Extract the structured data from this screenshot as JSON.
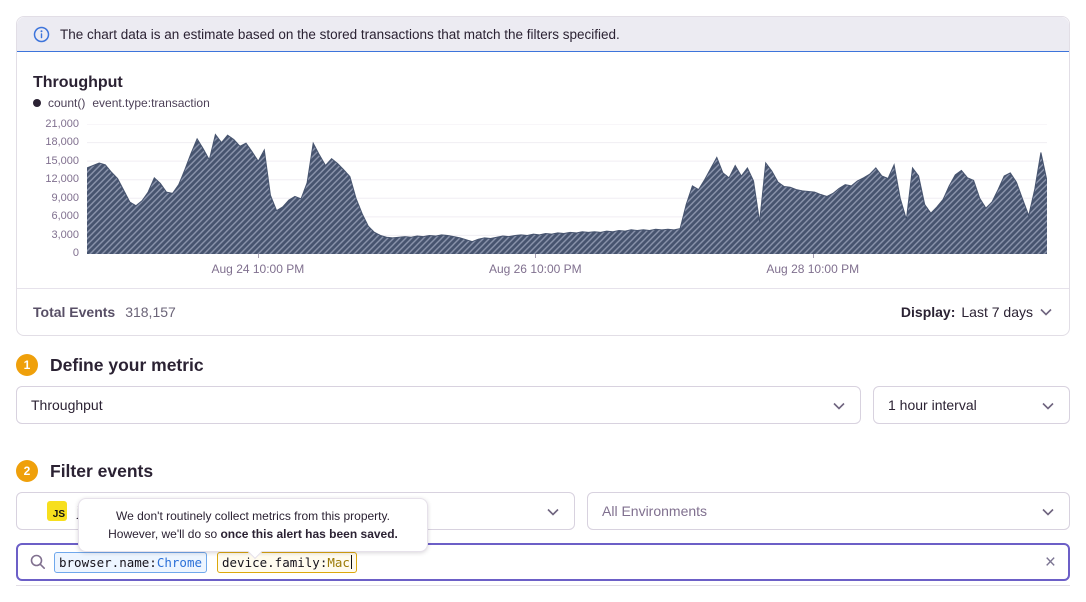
{
  "banner": {
    "text": "The chart data is an estimate based on the stored transactions that match the filters specified."
  },
  "chart_panel": {
    "title": "Throughput",
    "legend": {
      "aggregate": "count()",
      "query": "event.type:transaction"
    },
    "footer": {
      "total_label": "Total Events",
      "total_value": "318,157",
      "display_label": "Display:",
      "display_value": "Last 7 days"
    }
  },
  "chart_data": {
    "type": "area",
    "title": "Throughput",
    "xlabel": "",
    "ylabel": "",
    "ylim": [
      0,
      21000
    ],
    "grid": true,
    "legend_position": "top-left",
    "fill_color": "#47546F",
    "hatch_color": "#8A93AB",
    "grid_color": "#F0EEF3",
    "y_ticks": [
      {
        "value": 0,
        "label": "0"
      },
      {
        "value": 3000,
        "label": "3,000"
      },
      {
        "value": 6000,
        "label": "6,000"
      },
      {
        "value": 9000,
        "label": "9,000"
      },
      {
        "value": 12000,
        "label": "12,000"
      },
      {
        "value": 15000,
        "label": "15,000"
      },
      {
        "value": 18000,
        "label": "18,000"
      },
      {
        "value": 21000,
        "label": "21,000"
      }
    ],
    "x_ticks": [
      {
        "label": "Aug 24 10:00 PM",
        "pos": 0.178
      },
      {
        "label": "Aug 26 10:00 PM",
        "pos": 0.467
      },
      {
        "label": "Aug 28 10:00 PM",
        "pos": 0.756
      }
    ],
    "series": [
      {
        "name": "count() event.type:transaction",
        "values": [
          13900,
          14300,
          14700,
          14400,
          13200,
          12200,
          10300,
          8400,
          7800,
          8600,
          10000,
          12300,
          11400,
          10000,
          9800,
          11200,
          13600,
          16200,
          18600,
          17000,
          15200,
          19300,
          18000,
          19200,
          18500,
          17400,
          17900,
          16500,
          15000,
          16800,
          9500,
          7000,
          7600,
          8700,
          9300,
          8900,
          11500,
          17900,
          16000,
          14300,
          15400,
          14600,
          13600,
          12500,
          9000,
          6500,
          4500,
          3500,
          3000,
          2700,
          2600,
          2700,
          2800,
          2700,
          2900,
          2800,
          3000,
          2900,
          3100,
          3000,
          2800,
          2600,
          2300,
          2000,
          2400,
          2600,
          2500,
          2700,
          2900,
          2800,
          3000,
          3100,
          3000,
          3200,
          3100,
          3300,
          3200,
          3400,
          3300,
          3500,
          3400,
          3600,
          3500,
          3600,
          3500,
          3700,
          3600,
          3800,
          3700,
          3900,
          3800,
          3900,
          3800,
          4000,
          3900,
          4000,
          3900,
          4100,
          8000,
          11000,
          10400,
          12000,
          13800,
          15600,
          13100,
          12300,
          14300,
          12600,
          13900,
          11800,
          5200,
          14700,
          13400,
          11600,
          10900,
          10800,
          10400,
          10200,
          10100,
          10000,
          9600,
          9300,
          9800,
          10600,
          11200,
          11000,
          11800,
          12300,
          12900,
          13900,
          12600,
          12200,
          14400,
          9000,
          5600,
          13900,
          12600,
          8000,
          6600,
          7600,
          8800,
          11000,
          12800,
          13500,
          12300,
          11900,
          9000,
          7400,
          8400,
          10400,
          12600,
          13100,
          11600,
          8900,
          6200,
          10500,
          16400,
          11800
        ]
      }
    ]
  },
  "sections": {
    "metric": {
      "number": "1",
      "title": "Define your metric",
      "metric_select": "Throughput",
      "interval_select": "1 hour interval"
    },
    "filter": {
      "number": "2",
      "title": "Filter events",
      "project_badge": "JS",
      "project_visible_text": "j",
      "environment_select": "All Environments"
    }
  },
  "tooltip": {
    "line1": "We don't routinely collect metrics from this property.",
    "line2_normal": "However, we'll do so ",
    "line2_bold": "once this alert has been saved."
  },
  "search": {
    "tokens": [
      {
        "key": "browser.name:",
        "value": "Chrome"
      },
      {
        "key": "device.family:",
        "value": "Mac"
      }
    ],
    "clear_label": "×"
  },
  "colors": {
    "accent_purple": "#6C5FC7",
    "banner_blue": "#3D74DB",
    "badge_amber": "#EFA00B",
    "js_yellow": "#F7DF1E",
    "area_fill": "#47546F"
  }
}
